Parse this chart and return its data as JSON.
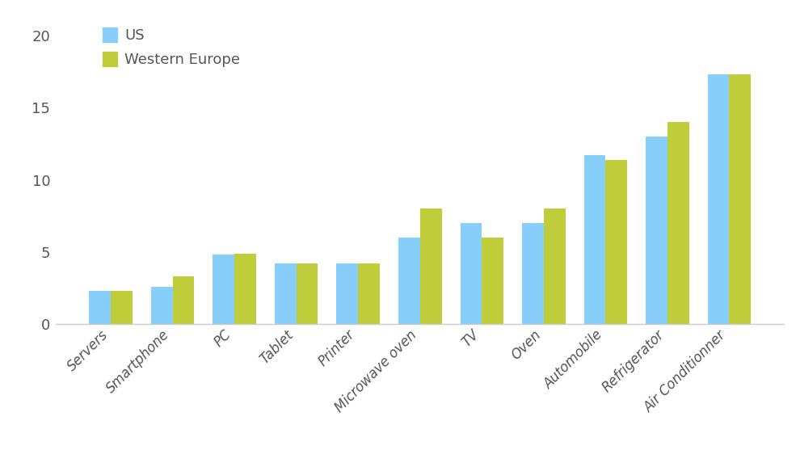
{
  "categories": [
    "Servers",
    "Smartphone",
    "PC",
    "Tablet",
    "Printer",
    "Microwave oven",
    "TV",
    "Oven",
    "Automobile",
    "Refrigerator",
    "Air Conditionner"
  ],
  "us_values": [
    2.3,
    2.6,
    4.8,
    4.2,
    4.2,
    6.0,
    7.0,
    7.0,
    11.7,
    13.0,
    17.3
  ],
  "eu_values": [
    2.3,
    3.3,
    4.9,
    4.2,
    4.2,
    8.0,
    6.0,
    8.0,
    11.4,
    14.0,
    17.3
  ],
  "us_color": "#87CEFA",
  "eu_color": "#BFCD3A",
  "us_label": "US",
  "eu_label": "Western Europe",
  "yticks": [
    0,
    5,
    10,
    15,
    20
  ],
  "ylim": [
    0,
    21.5
  ],
  "bar_width": 0.35,
  "background_color": "#ffffff",
  "text_color": "#555555",
  "tick_fontsize": 12,
  "legend_fontsize": 13
}
